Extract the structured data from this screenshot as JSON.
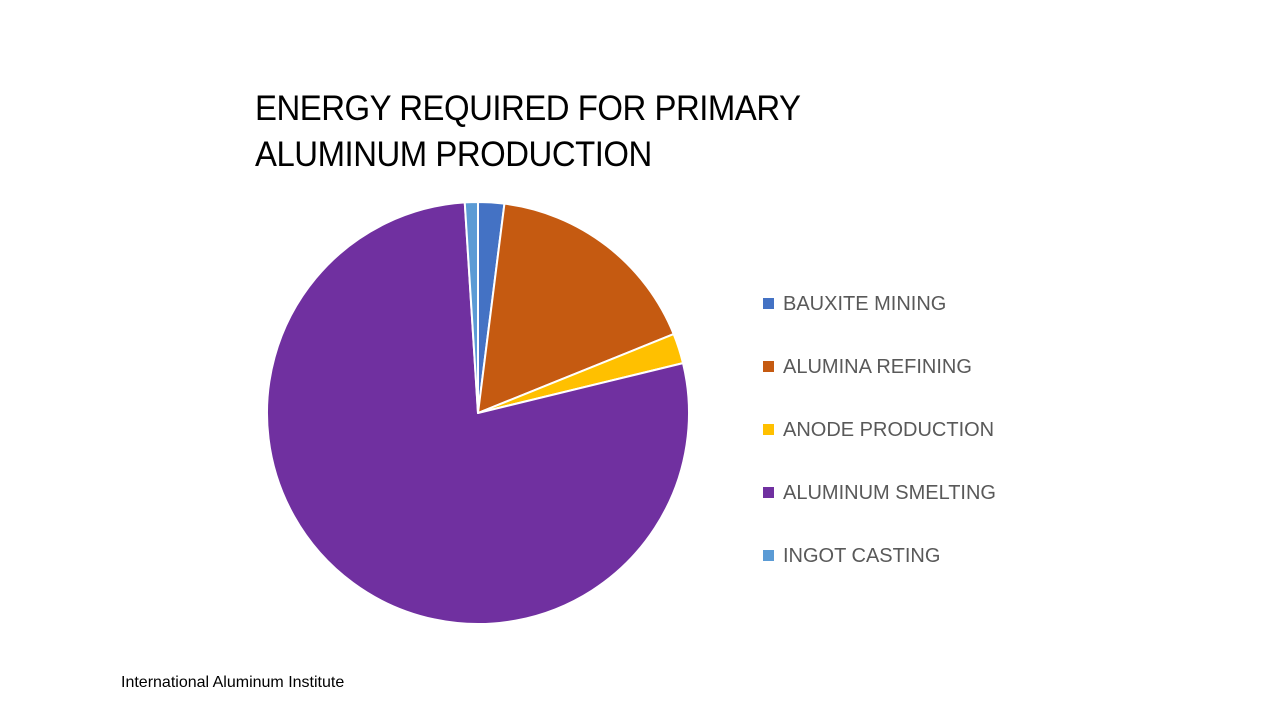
{
  "chart_data": {
    "type": "pie",
    "title_lines": [
      "ENERGY REQUIRED FOR PRIMARY",
      "ALUMINUM PRODUCTION"
    ],
    "legend_position": "right",
    "slices": [
      {
        "label": "BAUXITE MINING",
        "value": 2.0,
        "color": "#4472C4"
      },
      {
        "label": "ALUMINA REFINING",
        "value": 16.9,
        "color": "#C55A11"
      },
      {
        "label": "ANODE PRODUCTION",
        "value": 2.3,
        "color": "#FFC000"
      },
      {
        "label": "ALUMINUM SMELTING",
        "value": 77.8,
        "color": "#7030A0"
      },
      {
        "label": "INGOT CASTING",
        "value": 1.0,
        "color": "#5B9BD5"
      }
    ]
  },
  "footer": {
    "source": "International Aluminum Institute"
  }
}
